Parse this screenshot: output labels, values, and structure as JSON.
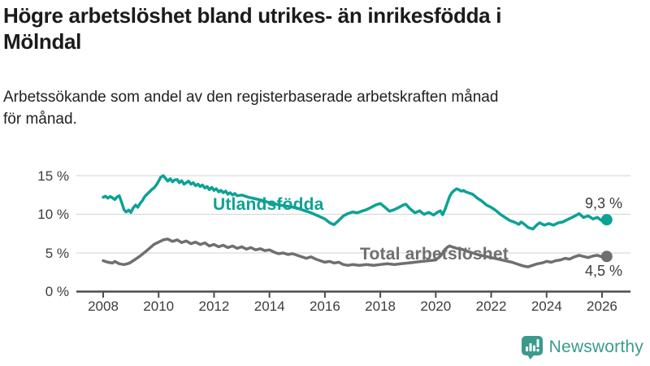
{
  "header": {
    "title_lines": [
      "Högre arbetslöshet bland utrikes- än inrikesfödda i",
      "Mölndal"
    ],
    "subtitle_lines": [
      "Arbetssökande som andel av den registerbaserade arbetskraften månad",
      "för månad."
    ]
  },
  "logo": {
    "text": "Newsworthy",
    "color": "#3a9a8e",
    "icon": "bar-chart-speech-bubble-icon"
  },
  "colors": {
    "series1": "#0ca294",
    "series2": "#6f6f6f",
    "grid": "#d9d9d9",
    "axis": "#4d4d4d",
    "tick_text": "#3c3c3c"
  },
  "chart_data": {
    "type": "line",
    "title": "Högre arbetslöshet bland utrikes- än inrikesfödda i Mölndal",
    "subtitle": "Arbetssökande som andel av den registerbaserade arbetskraften månad för månad.",
    "xlabel": "",
    "ylabel": "",
    "xlim": [
      2007.8,
      2027
    ],
    "ylim": [
      0,
      16.5
    ],
    "grid": "horizontal",
    "legend_position": "inline-labels",
    "y_ticks": [
      {
        "value": 0,
        "label": "0 %"
      },
      {
        "value": 5,
        "label": "5 %"
      },
      {
        "value": 10,
        "label": "10 %"
      },
      {
        "value": 15,
        "label": "15 %"
      }
    ],
    "x_ticks": [
      {
        "value": 2008,
        "label": "2008"
      },
      {
        "value": 2010,
        "label": "2010"
      },
      {
        "value": 2012,
        "label": "2012"
      },
      {
        "value": 2014,
        "label": "2014"
      },
      {
        "value": 2016,
        "label": "2016"
      },
      {
        "value": 2018,
        "label": "2018"
      },
      {
        "value": 2020,
        "label": "2020"
      },
      {
        "value": 2022,
        "label": "2022"
      },
      {
        "value": 2024,
        "label": "2024"
      },
      {
        "value": 2026,
        "label": "2026"
      }
    ],
    "series": [
      {
        "name": "Utlandsfödda",
        "color": "#0ca294",
        "end_label": "9,3 %",
        "end_value": 9.3,
        "points": [
          [
            2008.0,
            12.2
          ],
          [
            2008.08,
            12.35
          ],
          [
            2008.17,
            12.1
          ],
          [
            2008.25,
            12.3
          ],
          [
            2008.33,
            12.15
          ],
          [
            2008.42,
            11.9
          ],
          [
            2008.5,
            12.25
          ],
          [
            2008.58,
            12.4
          ],
          [
            2008.67,
            11.5
          ],
          [
            2008.75,
            10.6
          ],
          [
            2008.83,
            10.3
          ],
          [
            2008.92,
            10.55
          ],
          [
            2009.0,
            10.25
          ],
          [
            2009.08,
            10.8
          ],
          [
            2009.17,
            11.2
          ],
          [
            2009.25,
            10.9
          ],
          [
            2009.33,
            11.4
          ],
          [
            2009.42,
            11.8
          ],
          [
            2009.5,
            12.3
          ],
          [
            2009.58,
            12.6
          ],
          [
            2009.67,
            12.9
          ],
          [
            2009.75,
            13.2
          ],
          [
            2009.83,
            13.4
          ],
          [
            2009.92,
            13.8
          ],
          [
            2010.0,
            14.3
          ],
          [
            2010.08,
            14.8
          ],
          [
            2010.17,
            15.0
          ],
          [
            2010.25,
            14.65
          ],
          [
            2010.33,
            14.3
          ],
          [
            2010.42,
            14.6
          ],
          [
            2010.5,
            14.2
          ],
          [
            2010.58,
            14.45
          ],
          [
            2010.67,
            14.5
          ],
          [
            2010.75,
            14.1
          ],
          [
            2010.83,
            14.35
          ],
          [
            2010.92,
            13.9
          ],
          [
            2011.0,
            14.1
          ],
          [
            2011.08,
            14.3
          ],
          [
            2011.17,
            13.9
          ],
          [
            2011.25,
            14.1
          ],
          [
            2011.33,
            13.7
          ],
          [
            2011.42,
            13.9
          ],
          [
            2011.5,
            13.6
          ],
          [
            2011.58,
            13.8
          ],
          [
            2011.67,
            13.4
          ],
          [
            2011.75,
            13.6
          ],
          [
            2011.83,
            13.2
          ],
          [
            2011.92,
            13.5
          ],
          [
            2012.0,
            13.1
          ],
          [
            2012.08,
            13.3
          ],
          [
            2012.17,
            12.9
          ],
          [
            2012.25,
            13.1
          ],
          [
            2012.33,
            12.8
          ],
          [
            2012.42,
            13.0
          ],
          [
            2012.5,
            12.6
          ],
          [
            2012.58,
            12.8
          ],
          [
            2012.67,
            12.5
          ],
          [
            2012.75,
            12.7
          ],
          [
            2012.83,
            12.4
          ],
          [
            2013.0,
            12.5
          ],
          [
            2013.25,
            12.2
          ],
          [
            2013.5,
            12.0
          ],
          [
            2013.75,
            11.8
          ],
          [
            2014.0,
            11.5
          ],
          [
            2014.25,
            11.3
          ],
          [
            2014.5,
            11.1
          ],
          [
            2014.75,
            11.0
          ],
          [
            2015.0,
            10.8
          ],
          [
            2015.25,
            10.5
          ],
          [
            2015.5,
            10.2
          ],
          [
            2015.75,
            9.8
          ],
          [
            2016.0,
            9.4
          ],
          [
            2016.17,
            8.9
          ],
          [
            2016.33,
            8.65
          ],
          [
            2016.5,
            9.2
          ],
          [
            2016.67,
            9.8
          ],
          [
            2016.83,
            10.1
          ],
          [
            2017.0,
            10.3
          ],
          [
            2017.17,
            10.2
          ],
          [
            2017.33,
            10.4
          ],
          [
            2017.5,
            10.6
          ],
          [
            2017.67,
            10.9
          ],
          [
            2017.83,
            11.2
          ],
          [
            2018.0,
            11.4
          ],
          [
            2018.17,
            10.9
          ],
          [
            2018.33,
            10.4
          ],
          [
            2018.5,
            10.6
          ],
          [
            2018.67,
            10.9
          ],
          [
            2018.83,
            11.2
          ],
          [
            2018.92,
            11.3
          ],
          [
            2019.08,
            10.7
          ],
          [
            2019.25,
            10.2
          ],
          [
            2019.42,
            10.45
          ],
          [
            2019.58,
            10.0
          ],
          [
            2019.75,
            10.25
          ],
          [
            2019.92,
            9.9
          ],
          [
            2020.08,
            10.3
          ],
          [
            2020.17,
            10.45
          ],
          [
            2020.25,
            9.95
          ],
          [
            2020.33,
            10.6
          ],
          [
            2020.42,
            11.5
          ],
          [
            2020.5,
            12.3
          ],
          [
            2020.58,
            12.8
          ],
          [
            2020.67,
            13.1
          ],
          [
            2020.75,
            13.3
          ],
          [
            2020.83,
            13.2
          ],
          [
            2020.92,
            13.0
          ],
          [
            2021.0,
            13.1
          ],
          [
            2021.08,
            12.9
          ],
          [
            2021.17,
            12.8
          ],
          [
            2021.33,
            12.6
          ],
          [
            2021.5,
            12.1
          ],
          [
            2021.67,
            11.7
          ],
          [
            2021.83,
            11.2
          ],
          [
            2022.0,
            10.9
          ],
          [
            2022.17,
            10.5
          ],
          [
            2022.33,
            10.0
          ],
          [
            2022.5,
            9.6
          ],
          [
            2022.67,
            9.2
          ],
          [
            2022.83,
            9.0
          ],
          [
            2023.0,
            8.7
          ],
          [
            2023.08,
            9.0
          ],
          [
            2023.17,
            8.8
          ],
          [
            2023.33,
            8.3
          ],
          [
            2023.5,
            8.1
          ],
          [
            2023.67,
            8.7
          ],
          [
            2023.75,
            8.9
          ],
          [
            2023.92,
            8.6
          ],
          [
            2024.08,
            8.8
          ],
          [
            2024.25,
            8.6
          ],
          [
            2024.42,
            8.9
          ],
          [
            2024.58,
            9.0
          ],
          [
            2024.75,
            9.3
          ],
          [
            2024.92,
            9.6
          ],
          [
            2025.08,
            9.9
          ],
          [
            2025.17,
            10.1
          ],
          [
            2025.33,
            9.6
          ],
          [
            2025.5,
            9.8
          ],
          [
            2025.67,
            9.4
          ],
          [
            2025.83,
            9.6
          ],
          [
            2026.0,
            9.15
          ],
          [
            2026.17,
            9.3
          ]
        ]
      },
      {
        "name": "Total arbetslöshet",
        "color": "#6f6f6f",
        "end_label": "4,5 %",
        "end_value": 4.5,
        "points": [
          [
            2008.0,
            4.0
          ],
          [
            2008.17,
            3.8
          ],
          [
            2008.33,
            3.7
          ],
          [
            2008.42,
            3.9
          ],
          [
            2008.58,
            3.6
          ],
          [
            2008.75,
            3.5
          ],
          [
            2008.92,
            3.65
          ],
          [
            2009.0,
            3.8
          ],
          [
            2009.17,
            4.2
          ],
          [
            2009.33,
            4.6
          ],
          [
            2009.5,
            5.1
          ],
          [
            2009.67,
            5.6
          ],
          [
            2009.83,
            6.1
          ],
          [
            2010.0,
            6.4
          ],
          [
            2010.17,
            6.7
          ],
          [
            2010.33,
            6.8
          ],
          [
            2010.5,
            6.5
          ],
          [
            2010.67,
            6.7
          ],
          [
            2010.83,
            6.35
          ],
          [
            2011.0,
            6.55
          ],
          [
            2011.17,
            6.2
          ],
          [
            2011.33,
            6.4
          ],
          [
            2011.5,
            6.1
          ],
          [
            2011.67,
            6.3
          ],
          [
            2011.83,
            5.9
          ],
          [
            2012.0,
            6.1
          ],
          [
            2012.17,
            5.8
          ],
          [
            2012.33,
            6.0
          ],
          [
            2012.5,
            5.7
          ],
          [
            2012.67,
            5.9
          ],
          [
            2012.83,
            5.6
          ],
          [
            2013.0,
            5.8
          ],
          [
            2013.17,
            5.5
          ],
          [
            2013.33,
            5.7
          ],
          [
            2013.5,
            5.4
          ],
          [
            2013.67,
            5.55
          ],
          [
            2013.83,
            5.3
          ],
          [
            2014.0,
            5.4
          ],
          [
            2014.17,
            5.1
          ],
          [
            2014.33,
            4.9
          ],
          [
            2014.5,
            5.0
          ],
          [
            2014.67,
            4.8
          ],
          [
            2014.83,
            4.9
          ],
          [
            2015.0,
            4.7
          ],
          [
            2015.17,
            4.5
          ],
          [
            2015.33,
            4.3
          ],
          [
            2015.5,
            4.5
          ],
          [
            2015.67,
            4.2
          ],
          [
            2015.83,
            4.0
          ],
          [
            2016.0,
            3.8
          ],
          [
            2016.17,
            3.9
          ],
          [
            2016.33,
            3.7
          ],
          [
            2016.5,
            3.8
          ],
          [
            2016.67,
            3.5
          ],
          [
            2016.83,
            3.4
          ],
          [
            2017.0,
            3.5
          ],
          [
            2017.25,
            3.4
          ],
          [
            2017.5,
            3.5
          ],
          [
            2017.75,
            3.4
          ],
          [
            2018.0,
            3.5
          ],
          [
            2018.25,
            3.6
          ],
          [
            2018.5,
            3.5
          ],
          [
            2018.75,
            3.6
          ],
          [
            2019.0,
            3.7
          ],
          [
            2019.25,
            3.8
          ],
          [
            2019.5,
            3.9
          ],
          [
            2019.75,
            4.0
          ],
          [
            2020.0,
            4.1
          ],
          [
            2020.17,
            4.6
          ],
          [
            2020.33,
            5.4
          ],
          [
            2020.42,
            5.75
          ],
          [
            2020.5,
            5.9
          ],
          [
            2020.58,
            5.8
          ],
          [
            2020.75,
            5.6
          ],
          [
            2020.92,
            5.5
          ],
          [
            2021.08,
            5.3
          ],
          [
            2021.25,
            5.1
          ],
          [
            2021.5,
            4.8
          ],
          [
            2021.75,
            4.6
          ],
          [
            2022.0,
            4.4
          ],
          [
            2022.25,
            4.2
          ],
          [
            2022.5,
            4.0
          ],
          [
            2022.75,
            3.8
          ],
          [
            2023.0,
            3.5
          ],
          [
            2023.17,
            3.3
          ],
          [
            2023.33,
            3.2
          ],
          [
            2023.5,
            3.4
          ],
          [
            2023.67,
            3.6
          ],
          [
            2023.83,
            3.7
          ],
          [
            2024.0,
            3.9
          ],
          [
            2024.17,
            3.8
          ],
          [
            2024.33,
            4.0
          ],
          [
            2024.5,
            4.1
          ],
          [
            2024.67,
            4.3
          ],
          [
            2024.83,
            4.2
          ],
          [
            2025.0,
            4.5
          ],
          [
            2025.17,
            4.7
          ],
          [
            2025.33,
            4.55
          ],
          [
            2025.5,
            4.4
          ],
          [
            2025.67,
            4.6
          ],
          [
            2025.83,
            4.7
          ],
          [
            2026.0,
            4.5
          ],
          [
            2026.17,
            4.55
          ]
        ]
      }
    ]
  }
}
